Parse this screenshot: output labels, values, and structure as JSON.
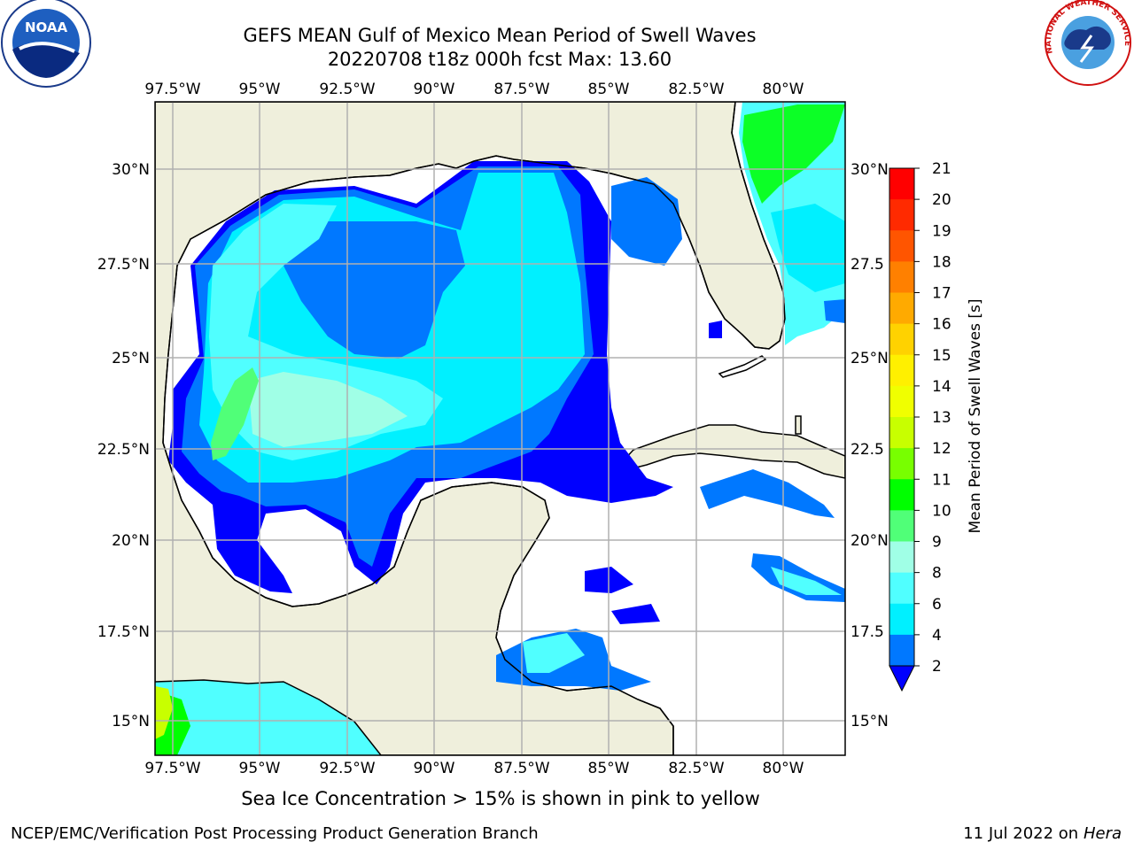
{
  "title_line1": "GEFS MEAN Gulf of Mexico Mean Period of Swell Waves",
  "title_line2": "20220708 t18z 000h fcst   Max: 13.60",
  "lon_labels": [
    "97.5°W",
    "95°W",
    "92.5°W",
    "90°W",
    "87.5°W",
    "85°W",
    "82.5°W",
    "80°W"
  ],
  "lat_labels_left": [
    "30°N",
    "27.5°N",
    "25°N",
    "22.5°N",
    "20°N",
    "17.5°N",
    "15°N"
  ],
  "lat_labels_right": [
    "30°N",
    "27.5",
    "25°N",
    "22.5",
    "20°N",
    "17.5",
    "15°N"
  ],
  "colorbar": {
    "label": "Mean Period of Swell Waves [s]",
    "ticks": [
      "21",
      "20",
      "19",
      "18",
      "17",
      "16",
      "15",
      "14",
      "13",
      "12",
      "11",
      "10",
      "9",
      "8",
      "6",
      "4",
      "2"
    ],
    "colors": [
      "#ff0000",
      "#ff2a00",
      "#ff5500",
      "#ff8000",
      "#ffaa00",
      "#ffd200",
      "#fff000",
      "#f0ff00",
      "#c8ff00",
      "#78ff00",
      "#00ff00",
      "#50ff78",
      "#a0ffe6",
      "#50ffff",
      "#00f0ff",
      "#0078ff"
    ],
    "extend_color": "#0000ff"
  },
  "subnote": "Sea Ice Concentration > 15% is shown in pink to yellow",
  "footer_left": "NCEP/EMC/Verification Post Processing Product Generation Branch",
  "footer_right_prefix": "11 Jul 2022 on ",
  "footer_right_host": "Hera",
  "logos": {
    "noaa_text": "NOAA",
    "nws_text": "NATIONAL WEATHER SERVICE"
  },
  "map_colors": {
    "land": "#efefdc",
    "water_blank": "#ffffff",
    "grid": "#b0b0b0"
  }
}
